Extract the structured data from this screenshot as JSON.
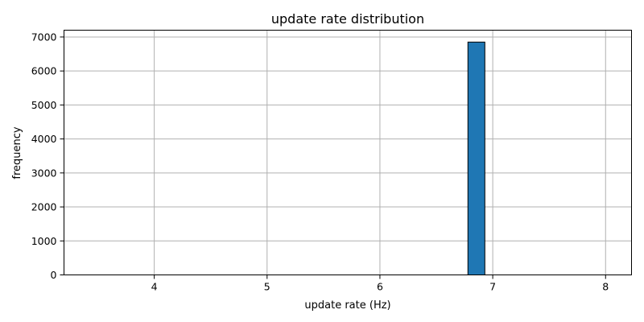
{
  "chart_data": {
    "type": "bar",
    "title": "update rate distribution",
    "xlabel": "update rate (Hz)",
    "ylabel": "frequency",
    "xlim": [
      3.2,
      8.23
    ],
    "ylim": [
      0,
      7200
    ],
    "xticks": [
      4,
      5,
      6,
      7,
      8
    ],
    "yticks": [
      0,
      1000,
      2000,
      3000,
      4000,
      5000,
      6000,
      7000
    ],
    "grid": true,
    "bin_range": [
      3.43,
      8.0
    ],
    "bin_count": 30,
    "series": [
      {
        "color": "#1f77b4",
        "bins": [
          {
            "x0": 3.43,
            "x1": 3.58,
            "value": 0
          },
          {
            "x0": 3.58,
            "x1": 3.73,
            "value": 0
          },
          {
            "x0": 3.73,
            "x1": 3.88,
            "value": 0
          },
          {
            "x0": 3.88,
            "x1": 4.04,
            "value": 0
          },
          {
            "x0": 4.04,
            "x1": 4.19,
            "value": 0
          },
          {
            "x0": 4.19,
            "x1": 4.34,
            "value": 0
          },
          {
            "x0": 4.34,
            "x1": 4.49,
            "value": 0
          },
          {
            "x0": 4.49,
            "x1": 4.65,
            "value": 0
          },
          {
            "x0": 4.65,
            "x1": 4.8,
            "value": 0
          },
          {
            "x0": 4.8,
            "x1": 4.95,
            "value": 0
          },
          {
            "x0": 4.95,
            "x1": 5.1,
            "value": 0
          },
          {
            "x0": 5.1,
            "x1": 5.26,
            "value": 0
          },
          {
            "x0": 5.26,
            "x1": 5.41,
            "value": 0
          },
          {
            "x0": 5.41,
            "x1": 5.56,
            "value": 0
          },
          {
            "x0": 5.56,
            "x1": 5.71,
            "value": 0
          },
          {
            "x0": 5.71,
            "x1": 5.87,
            "value": 0
          },
          {
            "x0": 5.87,
            "x1": 6.02,
            "value": 0
          },
          {
            "x0": 6.02,
            "x1": 6.17,
            "value": 0
          },
          {
            "x0": 6.17,
            "x1": 6.32,
            "value": 0
          },
          {
            "x0": 6.32,
            "x1": 6.48,
            "value": 0
          },
          {
            "x0": 6.48,
            "x1": 6.63,
            "value": 0
          },
          {
            "x0": 6.63,
            "x1": 6.78,
            "value": 0
          },
          {
            "x0": 6.78,
            "x1": 6.93,
            "value": 6850
          },
          {
            "x0": 6.93,
            "x1": 7.09,
            "value": 0
          },
          {
            "x0": 7.09,
            "x1": 7.24,
            "value": 0
          },
          {
            "x0": 7.24,
            "x1": 7.39,
            "value": 0
          },
          {
            "x0": 7.39,
            "x1": 7.54,
            "value": 0
          },
          {
            "x0": 7.54,
            "x1": 7.7,
            "value": 0
          },
          {
            "x0": 7.7,
            "x1": 7.85,
            "value": 0
          },
          {
            "x0": 7.85,
            "x1": 8.0,
            "value": 0
          }
        ]
      }
    ]
  }
}
